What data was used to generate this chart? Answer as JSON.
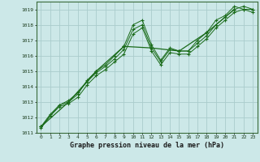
{
  "title": "Graphe pression niveau de la mer (hPa)",
  "bg_color": "#cce8e8",
  "grid_color": "#aacccc",
  "line_color": "#1a6b1a",
  "xlim": [
    -0.5,
    23.5
  ],
  "ylim": [
    1011,
    1019.5
  ],
  "xticks": [
    0,
    1,
    2,
    3,
    4,
    5,
    6,
    7,
    8,
    9,
    10,
    11,
    12,
    13,
    14,
    15,
    16,
    17,
    18,
    19,
    20,
    21,
    22,
    23
  ],
  "yticks": [
    1011,
    1012,
    1013,
    1014,
    1015,
    1016,
    1017,
    1018,
    1019
  ],
  "series": [
    {
      "x": [
        0,
        1,
        2,
        3,
        4,
        5,
        6,
        7,
        8,
        9,
        10,
        11,
        12,
        13,
        14,
        15,
        16,
        17,
        18,
        19,
        20,
        21,
        22,
        23
      ],
      "y": [
        1011.4,
        1012.2,
        1012.8,
        1013.0,
        1013.5,
        1014.4,
        1015.0,
        1015.4,
        1016.0,
        1016.6,
        1018.0,
        1018.3,
        1016.7,
        1015.7,
        1016.5,
        1016.3,
        1016.3,
        1017.0,
        1017.5,
        1018.3,
        1018.6,
        1019.2,
        1019.0,
        1019.0
      ]
    },
    {
      "x": [
        0,
        1,
        2,
        3,
        4,
        5,
        6,
        7,
        8,
        9,
        10,
        11,
        12,
        13,
        14,
        15,
        16,
        17,
        18,
        19,
        20,
        21,
        22,
        23
      ],
      "y": [
        1011.3,
        1012.1,
        1012.7,
        1012.9,
        1013.3,
        1014.1,
        1014.7,
        1015.1,
        1015.6,
        1016.1,
        1017.4,
        1017.8,
        1016.3,
        1015.4,
        1016.2,
        1016.1,
        1016.1,
        1016.6,
        1017.1,
        1017.8,
        1018.3,
        1018.8,
        1019.0,
        1018.8
      ]
    },
    {
      "x": [
        0,
        1,
        2,
        3,
        4,
        5,
        6,
        7,
        8,
        9,
        10,
        11,
        12,
        13,
        14,
        15,
        16,
        17,
        18,
        19,
        20,
        21,
        22,
        23
      ],
      "y": [
        1011.4,
        1012.1,
        1012.8,
        1013.1,
        1013.6,
        1014.3,
        1014.9,
        1015.3,
        1015.8,
        1016.4,
        1017.7,
        1018.0,
        1016.5,
        1015.6,
        1016.4,
        1016.3,
        1016.3,
        1016.8,
        1017.3,
        1018.0,
        1018.5,
        1019.0,
        1019.2,
        1019.0
      ]
    },
    {
      "x": [
        0,
        3,
        6,
        9,
        12,
        15,
        18,
        21
      ],
      "y": [
        1011.4,
        1013.0,
        1015.0,
        1016.6,
        1016.5,
        1016.3,
        1017.5,
        1019.0
      ]
    }
  ]
}
